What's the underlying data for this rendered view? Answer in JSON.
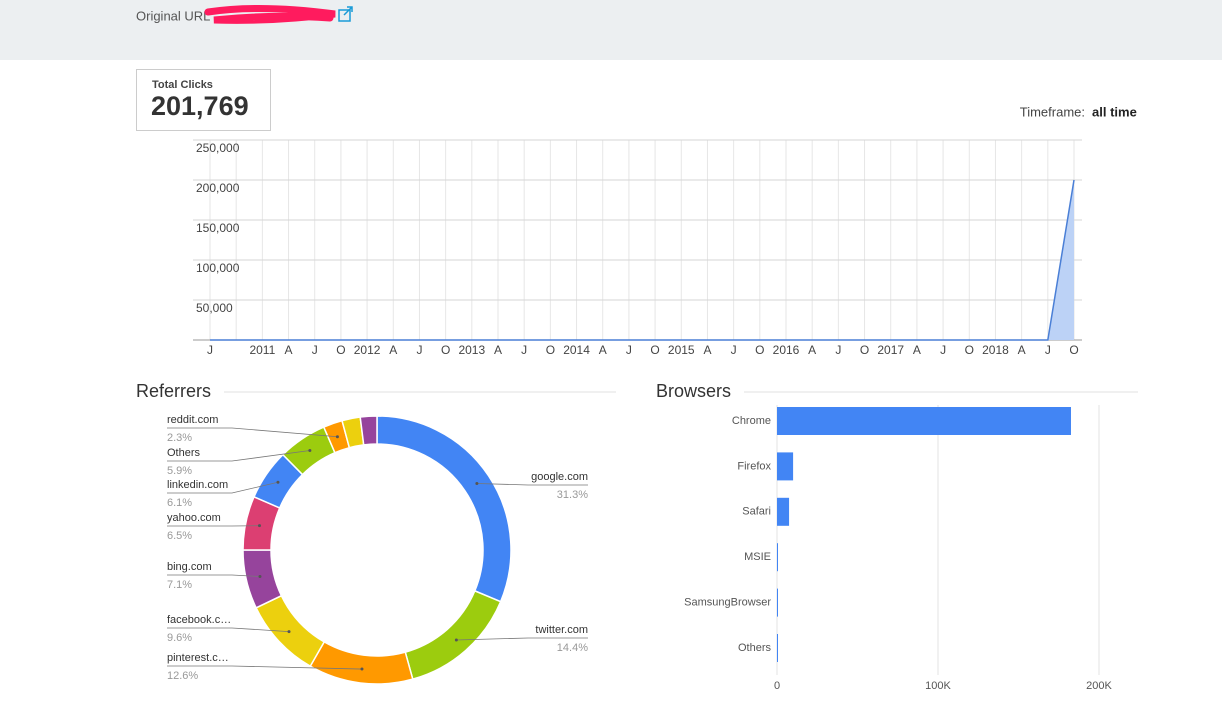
{
  "header": {
    "label": "Original URL"
  },
  "summary": {
    "label": "Total Clicks",
    "value": "201,769"
  },
  "timeframe": {
    "label": "Timeframe:",
    "value": "all time"
  },
  "chart_data": [
    {
      "type": "area",
      "color": "#4a7fd6",
      "fill": "#bcd2f6",
      "categories": [
        "J",
        null,
        "2011",
        "A",
        "J",
        "O",
        "2012",
        "A",
        "J",
        "O",
        "2013",
        "A",
        "J",
        "O",
        "2014",
        "A",
        "J",
        "O",
        "2015",
        "A",
        "J",
        "O",
        "2016",
        "A",
        "J",
        "O",
        "2017",
        "A",
        "J",
        "O",
        "2018",
        "A",
        "J",
        "O"
      ],
      "values": [
        0,
        0,
        0,
        0,
        0,
        0,
        0,
        0,
        0,
        0,
        0,
        0,
        0,
        0,
        0,
        0,
        0,
        0,
        0,
        0,
        0,
        0,
        0,
        0,
        0,
        0,
        0,
        0,
        0,
        0,
        0,
        0,
        0,
        200000
      ],
      "ylim": [
        0,
        250000
      ],
      "yticks": [
        {
          "value": 50000,
          "label": "50,000"
        },
        {
          "value": 100000,
          "label": "100,000"
        },
        {
          "value": 150000,
          "label": "150,000"
        },
        {
          "value": 200000,
          "label": "200,000"
        },
        {
          "value": 250000,
          "label": "250,000"
        }
      ],
      "grid": true
    },
    {
      "type": "donut",
      "title": "Referrers",
      "categories": [
        "google.com",
        "twitter.com",
        "pinterest.c…",
        "facebook.c…",
        "bing.com",
        "yahoo.com",
        "linkedin.com",
        "Others",
        "reddit.com",
        null,
        null
      ],
      "values": [
        31.3,
        14.4,
        12.6,
        9.6,
        7.1,
        6.5,
        6.1,
        5.9,
        2.3,
        2.2,
        2.0
      ],
      "value_labels": [
        "31.3%",
        "14.4%",
        "12.6%",
        "9.6%",
        "7.1%",
        "6.5%",
        "6.1%",
        "5.9%",
        "2.3%",
        null,
        null
      ],
      "colors": [
        "#4285f4",
        "#9ccc0e",
        "#ff9900",
        "#ecd00e",
        "#96449c",
        "#dc3f72",
        "#4285f4",
        "#9ccc0e",
        "#ff9900",
        "#ecd00e",
        "#96449c"
      ]
    },
    {
      "type": "hbar",
      "title": "Browsers",
      "color": "#4285f4",
      "categories": [
        "Chrome",
        "Firefox",
        "Safari",
        "MSIE",
        "SamsungBrowser",
        "Others"
      ],
      "values": [
        182600,
        10000,
        7500,
        200,
        150,
        300
      ],
      "xlim": [
        0,
        200000
      ],
      "xticks": [
        0,
        {
          "value": 100000,
          "label": "100K"
        },
        {
          "value": 200000,
          "label": "200K"
        }
      ],
      "grid": true
    }
  ]
}
